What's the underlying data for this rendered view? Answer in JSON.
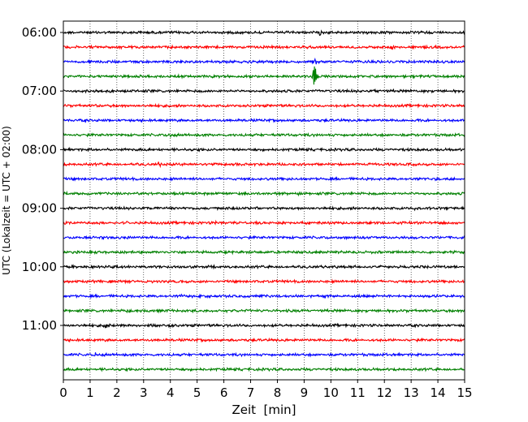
{
  "chart_data": {
    "type": "line",
    "subtype": "helicorder",
    "title": "",
    "xlabel": "Zeit  [min]",
    "ylabel": "UTC (Lokalzeit = UTC + 02:00)",
    "xlim": [
      0,
      15
    ],
    "x_ticks": [
      0,
      1,
      2,
      3,
      4,
      5,
      6,
      7,
      8,
      9,
      10,
      11,
      12,
      13,
      14,
      15
    ],
    "x_tick_labels": [
      "0",
      "1",
      "2",
      "3",
      "4",
      "5",
      "6",
      "7",
      "8",
      "9",
      "10",
      "11",
      "12",
      "13",
      "14",
      "15"
    ],
    "vertical_grid": "dotted at every minute",
    "y_tick_labels": [
      "06:00",
      "07:00",
      "08:00",
      "09:00",
      "10:00",
      "11:00"
    ],
    "trace_colors": [
      "#000000",
      "#ff0000",
      "#0000ff",
      "#008000"
    ],
    "row_minutes": 15,
    "traces": [
      {
        "start": "06:00",
        "color": "#000000",
        "events": [
          {
            "minute": 9.6,
            "amplitude": 1.6
          },
          {
            "minute": 11.4,
            "amplitude": 1.2
          }
        ]
      },
      {
        "start": "06:15",
        "color": "#ff0000",
        "events": [
          {
            "minute": 12.3,
            "amplitude": 1.4
          }
        ]
      },
      {
        "start": "06:30",
        "color": "#0000ff",
        "events": [
          {
            "minute": 9.4,
            "amplitude": 2.2
          }
        ]
      },
      {
        "start": "06:45",
        "color": "#008000",
        "events": [
          {
            "minute": 9.4,
            "amplitude": 8.5
          },
          {
            "minute": 13.0,
            "amplitude": 1.5
          }
        ]
      },
      {
        "start": "07:00",
        "color": "#000000",
        "events": [
          {
            "minute": 11.7,
            "amplitude": 1.3
          }
        ]
      },
      {
        "start": "07:15",
        "color": "#ff0000",
        "events": []
      },
      {
        "start": "07:30",
        "color": "#0000ff",
        "events": []
      },
      {
        "start": "07:45",
        "color": "#008000",
        "events": [
          {
            "minute": 4.0,
            "amplitude": 1.8
          }
        ]
      },
      {
        "start": "08:00",
        "color": "#000000",
        "events": []
      },
      {
        "start": "08:15",
        "color": "#ff0000",
        "events": [
          {
            "minute": 3.6,
            "amplitude": 1.5
          }
        ]
      },
      {
        "start": "08:30",
        "color": "#0000ff",
        "events": []
      },
      {
        "start": "08:45",
        "color": "#008000",
        "events": [
          {
            "minute": 8.8,
            "amplitude": 1.5
          }
        ]
      },
      {
        "start": "09:00",
        "color": "#000000",
        "events": [
          {
            "minute": 8.8,
            "amplitude": 1.3
          },
          {
            "minute": 13.1,
            "amplitude": 1.2
          }
        ]
      },
      {
        "start": "09:15",
        "color": "#ff0000",
        "events": [
          {
            "minute": 2.4,
            "amplitude": 1.6
          },
          {
            "minute": 5.7,
            "amplitude": 1.4
          }
        ]
      },
      {
        "start": "09:30",
        "color": "#0000ff",
        "events": [
          {
            "minute": 2.4,
            "amplitude": 1.4
          }
        ]
      },
      {
        "start": "09:45",
        "color": "#008000",
        "events": []
      },
      {
        "start": "10:00",
        "color": "#000000",
        "events": [
          {
            "minute": 6.3,
            "amplitude": 1.3
          }
        ]
      },
      {
        "start": "10:15",
        "color": "#ff0000",
        "events": [
          {
            "minute": 4.4,
            "amplitude": 1.2
          }
        ]
      },
      {
        "start": "10:30",
        "color": "#0000ff",
        "events": [
          {
            "minute": 4.4,
            "amplitude": 1.3
          }
        ]
      },
      {
        "start": "10:45",
        "color": "#008000",
        "events": [
          {
            "minute": 2.4,
            "amplitude": 1.3
          }
        ]
      },
      {
        "start": "11:00",
        "color": "#000000",
        "events": [
          {
            "minute": 1.6,
            "amplitude": 1.5
          },
          {
            "minute": 4.0,
            "amplitude": 1.3
          }
        ]
      },
      {
        "start": "11:15",
        "color": "#ff0000",
        "events": []
      },
      {
        "start": "11:30",
        "color": "#0000ff",
        "events": [
          {
            "minute": 1.2,
            "amplitude": 1.3
          }
        ]
      },
      {
        "start": "11:45",
        "color": "#008000",
        "events": []
      }
    ]
  }
}
